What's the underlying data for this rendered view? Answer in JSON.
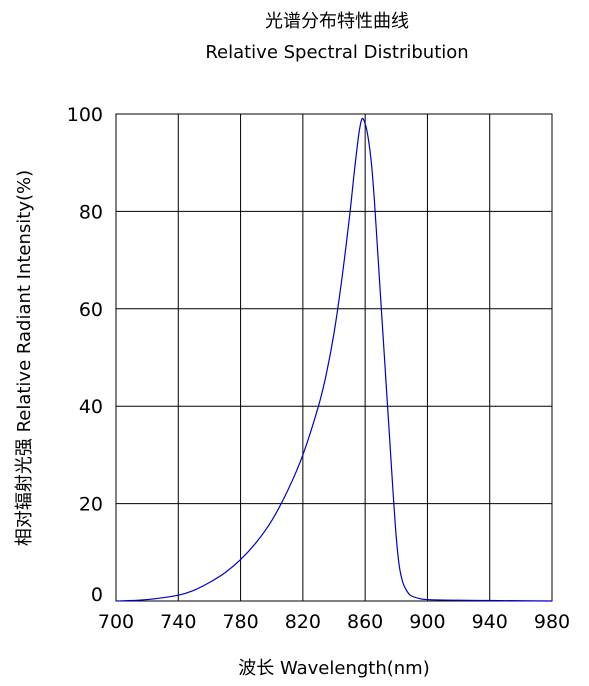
{
  "chart_data": {
    "type": "line",
    "title": "光谱分布特性曲线",
    "subtitle": "Relative Spectral Distribution",
    "xlabel": "波长  Wavelength(nm)",
    "ylabel": "相对辐射光强  Relative  Radiant Intensity(%)",
    "xlim": [
      700,
      980
    ],
    "ylim": [
      0,
      100
    ],
    "x_ticks": [
      700,
      740,
      780,
      820,
      860,
      900,
      940,
      980
    ],
    "y_ticks": [
      0,
      20,
      40,
      60,
      80,
      100
    ],
    "grid": true,
    "line_color": "#0000cc",
    "series": [
      {
        "x": [
          700,
          720,
          740,
          750,
          760,
          770,
          780,
          790,
          800,
          810,
          820,
          830,
          835,
          840,
          845,
          850,
          853,
          856,
          858,
          860,
          862,
          864,
          866,
          868,
          870,
          872,
          874,
          876,
          878,
          880,
          882,
          884,
          886,
          888,
          890,
          895,
          900,
          920,
          940,
          960,
          980
        ],
        "y": [
          0,
          0.3,
          1.2,
          2.2,
          3.8,
          5.8,
          8.5,
          12,
          16.5,
          22.5,
          30,
          40,
          46.5,
          55,
          66,
          79,
          88,
          96,
          99,
          98,
          95,
          90,
          82,
          72,
          62,
          52,
          42,
          32,
          22,
          13,
          7,
          4,
          2.5,
          1.5,
          1,
          0.5,
          0.3,
          0.15,
          0.1,
          0.05,
          0
        ]
      }
    ]
  }
}
